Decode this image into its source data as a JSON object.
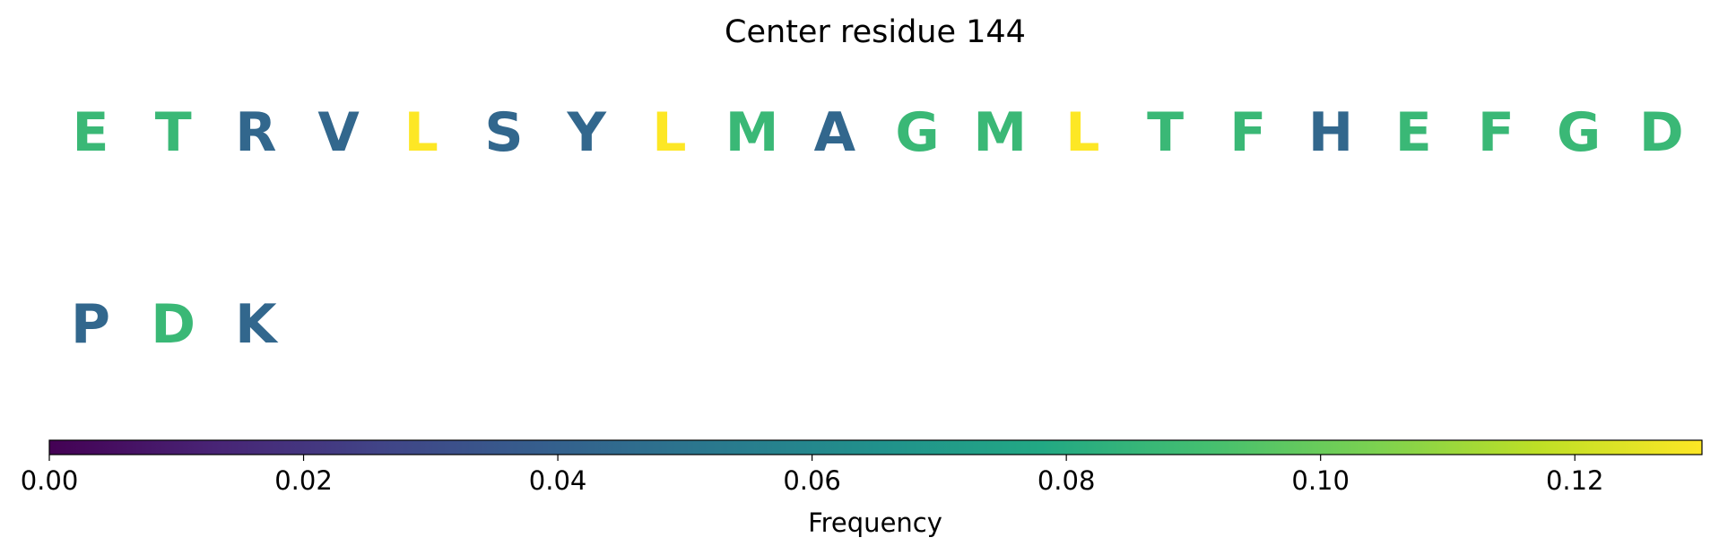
{
  "chart_data": {
    "type": "heatmap",
    "title": "Center residue 144",
    "residues": [
      {
        "letter": "E",
        "frequency": 0.087
      },
      {
        "letter": "T",
        "frequency": 0.087
      },
      {
        "letter": "R",
        "frequency": 0.043
      },
      {
        "letter": "V",
        "frequency": 0.043
      },
      {
        "letter": "L",
        "frequency": 0.13
      },
      {
        "letter": "S",
        "frequency": 0.043
      },
      {
        "letter": "Y",
        "frequency": 0.043
      },
      {
        "letter": "L",
        "frequency": 0.13
      },
      {
        "letter": "M",
        "frequency": 0.087
      },
      {
        "letter": "A",
        "frequency": 0.043
      },
      {
        "letter": "G",
        "frequency": 0.087
      },
      {
        "letter": "M",
        "frequency": 0.087
      },
      {
        "letter": "L",
        "frequency": 0.13
      },
      {
        "letter": "T",
        "frequency": 0.087
      },
      {
        "letter": "F",
        "frequency": 0.087
      },
      {
        "letter": "H",
        "frequency": 0.043
      },
      {
        "letter": "E",
        "frequency": 0.087
      },
      {
        "letter": "F",
        "frequency": 0.087
      },
      {
        "letter": "G",
        "frequency": 0.087
      },
      {
        "letter": "D",
        "frequency": 0.087
      },
      {
        "letter": "P",
        "frequency": 0.043
      },
      {
        "letter": "D",
        "frequency": 0.087
      },
      {
        "letter": "K",
        "frequency": 0.043
      }
    ],
    "per_row": 20,
    "colorbar": {
      "colormap": "viridis",
      "range": [
        0,
        0.13
      ],
      "ticks": [
        "0.00",
        "0.02",
        "0.04",
        "0.06",
        "0.08",
        "0.10",
        "0.12"
      ],
      "tick_values": [
        0,
        0.02,
        0.04,
        0.06,
        0.08,
        0.1,
        0.12
      ],
      "label": "Frequency",
      "orientation": "horizontal"
    }
  }
}
